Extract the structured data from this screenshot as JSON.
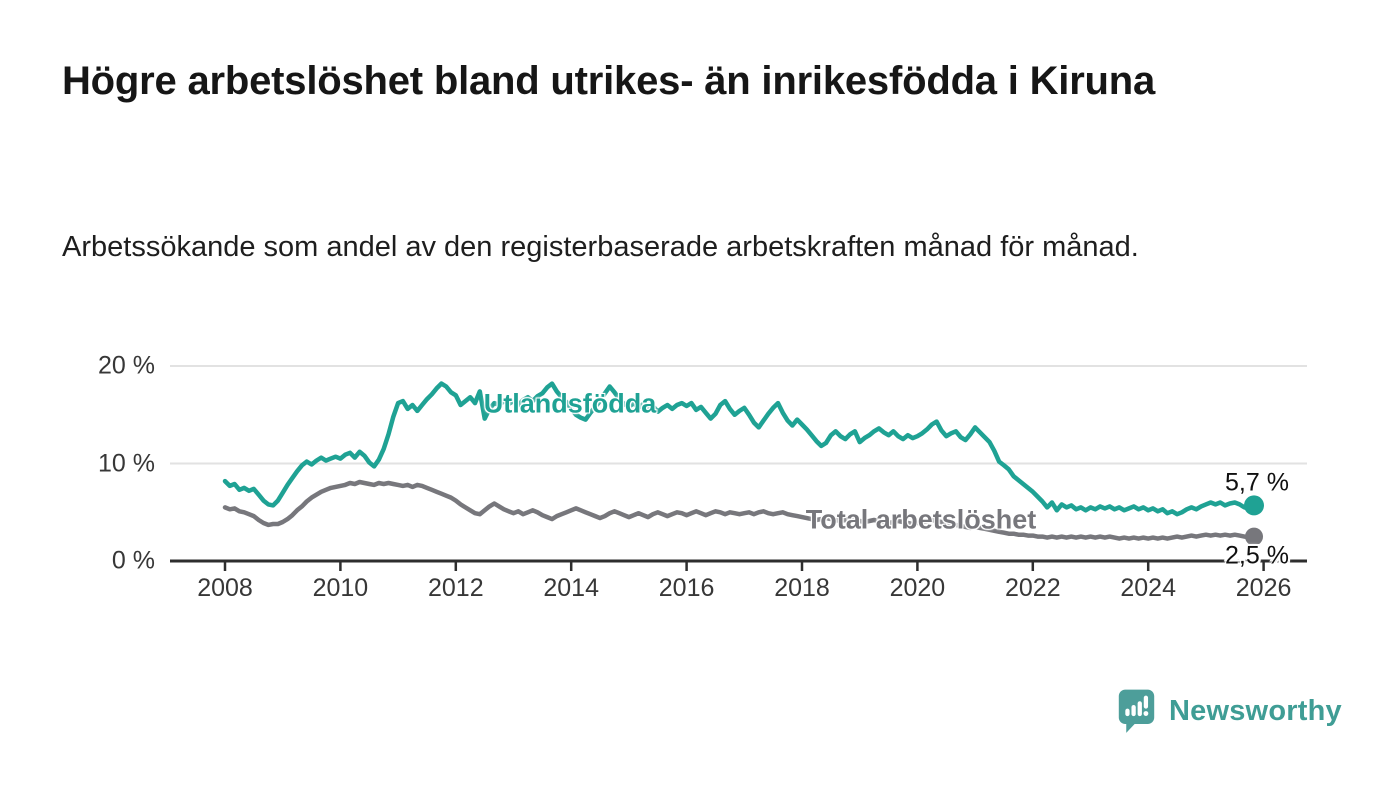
{
  "header": {
    "title": "Högre arbetslöshet bland utrikes- än inrikesfödda i Kiruna",
    "subtitle": "Arbetssökande som andel av den registerbaserade arbetskraften månad för månad."
  },
  "chart_data": {
    "type": "line",
    "title": "Högre arbetslöshet bland utrikes- än inrikesfödda i Kiruna",
    "subtitle": "Arbetssökande som andel av den registerbaserade arbetskraften månad för månad.",
    "unit": "%",
    "x_axis": {
      "ticks": [
        2008,
        2010,
        2012,
        2014,
        2016,
        2018,
        2020,
        2022,
        2024,
        2026
      ],
      "tick_labels": [
        "2008",
        "2010",
        "2012",
        "2014",
        "2016",
        "2018",
        "2020",
        "2022",
        "2024",
        "2026"
      ],
      "range": [
        2007.05,
        2026.75
      ]
    },
    "y_axis": {
      "ticks": [
        0,
        10,
        20
      ],
      "tick_labels": [
        "0 %",
        "10 %",
        "20 %"
      ],
      "gridlines": [
        10,
        20
      ],
      "range": [
        0,
        20
      ]
    },
    "style": {
      "gridline_color": "#e2e2e2",
      "axis_color": "#2e2e2e",
      "background": "#ffffff"
    },
    "series": [
      {
        "id": "utlandsfodda",
        "name": "Utlandsfödda",
        "color": "#1fa294",
        "start_year": 2008,
        "step_months": 1,
        "end_label": "5,7 %",
        "end_value": 5.7,
        "values": [
          8.2,
          7.7,
          7.9,
          7.3,
          7.5,
          7.2,
          7.4,
          6.8,
          6.2,
          5.8,
          5.7,
          6.2,
          7.0,
          7.8,
          8.5,
          9.2,
          9.8,
          10.2,
          9.9,
          10.3,
          10.6,
          10.3,
          10.5,
          10.7,
          10.5,
          10.9,
          11.1,
          10.6,
          11.2,
          10.8,
          10.1,
          9.7,
          10.4,
          11.5,
          13.0,
          14.8,
          16.2,
          16.4,
          15.6,
          16.0,
          15.4,
          16.0,
          16.6,
          17.1,
          17.7,
          18.2,
          17.9,
          17.3,
          17.0,
          16.0,
          16.4,
          16.8,
          16.2,
          17.4,
          14.6,
          15.6,
          16.2,
          16.0,
          16.4,
          16.1,
          16.4,
          16.0,
          16.5,
          16.8,
          16.4,
          16.9,
          17.2,
          17.8,
          18.2,
          17.4,
          16.8,
          16.3,
          15.6,
          15.0,
          14.7,
          14.5,
          15.2,
          15.8,
          16.4,
          17.2,
          17.9,
          17.3,
          16.6,
          16.1,
          15.8,
          16.2,
          15.7,
          16.1,
          15.5,
          15.9,
          15.3,
          15.7,
          16.0,
          15.6,
          16.0,
          16.2,
          15.9,
          16.2,
          15.5,
          15.8,
          15.2,
          14.6,
          15.1,
          16.0,
          16.4,
          15.6,
          15.0,
          15.4,
          15.7,
          15.0,
          14.2,
          13.7,
          14.4,
          15.1,
          15.7,
          16.2,
          15.2,
          14.4,
          13.9,
          14.5,
          14.0,
          13.5,
          12.9,
          12.3,
          11.8,
          12.1,
          12.9,
          13.3,
          12.8,
          12.5,
          13.0,
          13.3,
          12.2,
          12.6,
          12.9,
          13.3,
          13.6,
          13.2,
          12.9,
          13.3,
          12.8,
          12.5,
          12.9,
          12.6,
          12.8,
          13.1,
          13.5,
          14.0,
          14.3,
          13.4,
          12.8,
          13.1,
          13.3,
          12.7,
          12.4,
          13.0,
          13.7,
          13.2,
          12.7,
          12.2,
          11.3,
          10.2,
          9.8,
          9.4,
          8.7,
          8.3,
          7.9,
          7.5,
          7.1,
          6.6,
          6.1,
          5.5,
          6.0,
          5.2,
          5.8,
          5.5,
          5.7,
          5.3,
          5.5,
          5.2,
          5.5,
          5.3,
          5.6,
          5.4,
          5.6,
          5.3,
          5.5,
          5.2,
          5.4,
          5.6,
          5.3,
          5.5,
          5.2,
          5.4,
          5.1,
          5.3,
          4.9,
          5.1,
          4.8,
          5.0,
          5.3,
          5.5,
          5.3,
          5.6,
          5.8,
          6.0,
          5.8,
          6.0,
          5.7,
          5.9,
          6.0,
          5.8,
          5.5,
          5.4,
          5.7
        ]
      },
      {
        "id": "total-arbetsloshet",
        "name": "Total arbetslöshet",
        "color": "#77777c",
        "start_year": 2008,
        "step_months": 1,
        "end_label": "2,5 %",
        "end_value": 2.5,
        "values": [
          5.5,
          5.3,
          5.4,
          5.1,
          5.0,
          4.8,
          4.6,
          4.2,
          3.9,
          3.7,
          3.8,
          3.8,
          4.0,
          4.3,
          4.7,
          5.2,
          5.6,
          6.1,
          6.5,
          6.8,
          7.1,
          7.3,
          7.5,
          7.6,
          7.7,
          7.8,
          8.0,
          7.9,
          8.1,
          8.0,
          7.9,
          7.8,
          8.0,
          7.9,
          8.0,
          7.9,
          7.8,
          7.7,
          7.8,
          7.6,
          7.8,
          7.7,
          7.5,
          7.3,
          7.1,
          6.9,
          6.7,
          6.5,
          6.2,
          5.8,
          5.5,
          5.2,
          4.9,
          4.8,
          5.2,
          5.6,
          5.9,
          5.6,
          5.3,
          5.1,
          4.9,
          5.1,
          4.8,
          5.0,
          5.2,
          5.0,
          4.7,
          4.5,
          4.3,
          4.6,
          4.8,
          5.0,
          5.2,
          5.4,
          5.2,
          5.0,
          4.8,
          4.6,
          4.4,
          4.6,
          4.9,
          5.1,
          4.9,
          4.7,
          4.5,
          4.7,
          4.9,
          4.7,
          4.5,
          4.8,
          5.0,
          4.8,
          4.6,
          4.8,
          5.0,
          4.9,
          4.7,
          4.9,
          5.1,
          4.9,
          4.7,
          4.9,
          5.1,
          5.0,
          4.8,
          5.0,
          4.9,
          4.8,
          4.9,
          5.0,
          4.8,
          5.0,
          5.1,
          4.9,
          4.8,
          4.9,
          5.0,
          4.8,
          4.7,
          4.6,
          4.5,
          4.4,
          4.3,
          4.2,
          4.3,
          4.4,
          4.3,
          4.2,
          4.1,
          4.2,
          4.3,
          4.2,
          4.1,
          4.0,
          4.1,
          4.2,
          4.1,
          4.0,
          3.9,
          4.0,
          4.1,
          4.0,
          3.9,
          3.8,
          3.9,
          4.0,
          4.1,
          4.2,
          4.1,
          4.0,
          3.9,
          3.8,
          3.7,
          3.6,
          3.5,
          3.4,
          3.5,
          3.4,
          3.3,
          3.2,
          3.1,
          3.0,
          2.9,
          2.8,
          2.8,
          2.7,
          2.7,
          2.6,
          2.6,
          2.5,
          2.5,
          2.4,
          2.5,
          2.4,
          2.5,
          2.4,
          2.5,
          2.4,
          2.5,
          2.4,
          2.5,
          2.4,
          2.5,
          2.4,
          2.5,
          2.4,
          2.3,
          2.4,
          2.3,
          2.4,
          2.3,
          2.4,
          2.3,
          2.4,
          2.3,
          2.4,
          2.3,
          2.4,
          2.5,
          2.4,
          2.5,
          2.6,
          2.5,
          2.6,
          2.7,
          2.6,
          2.7,
          2.6,
          2.7,
          2.6,
          2.7,
          2.6,
          2.5,
          2.4,
          2.5
        ]
      }
    ],
    "legend_position": "inline-labels"
  },
  "footer": {
    "brand": "Newsworthy"
  }
}
